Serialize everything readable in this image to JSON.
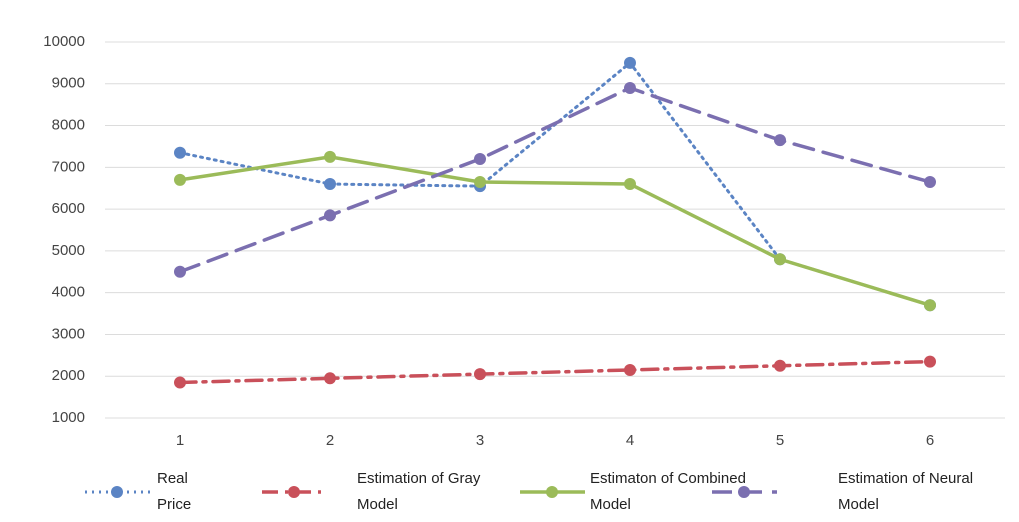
{
  "chart_data": {
    "type": "line",
    "categories": [
      "1",
      "2",
      "3",
      "4",
      "5",
      "6"
    ],
    "series": [
      {
        "name": "Real Price",
        "color": "#5b84c4",
        "style": "dotted",
        "values": [
          7350,
          6600,
          6550,
          9500,
          4800,
          3700
        ]
      },
      {
        "name": "Estimation of Gray Model",
        "color": "#c9505a",
        "style": "dashdot",
        "values": [
          1850,
          1950,
          2050,
          2150,
          2250,
          2350
        ]
      },
      {
        "name": "Estimaton of Combined Model",
        "color": "#9bbb59",
        "style": "solid",
        "values": [
          6700,
          7250,
          6650,
          6600,
          4800,
          3700
        ]
      },
      {
        "name": "Estimation of Neural Model",
        "color": "#7b6fb0",
        "style": "dashed",
        "values": [
          4500,
          5850,
          7200,
          8900,
          7650,
          6650
        ]
      }
    ],
    "ylim": [
      1000,
      10000
    ],
    "yticks": [
      1000,
      2000,
      3000,
      4000,
      5000,
      6000,
      7000,
      8000,
      9000,
      10000
    ],
    "grid": true,
    "legend": "bottom"
  }
}
